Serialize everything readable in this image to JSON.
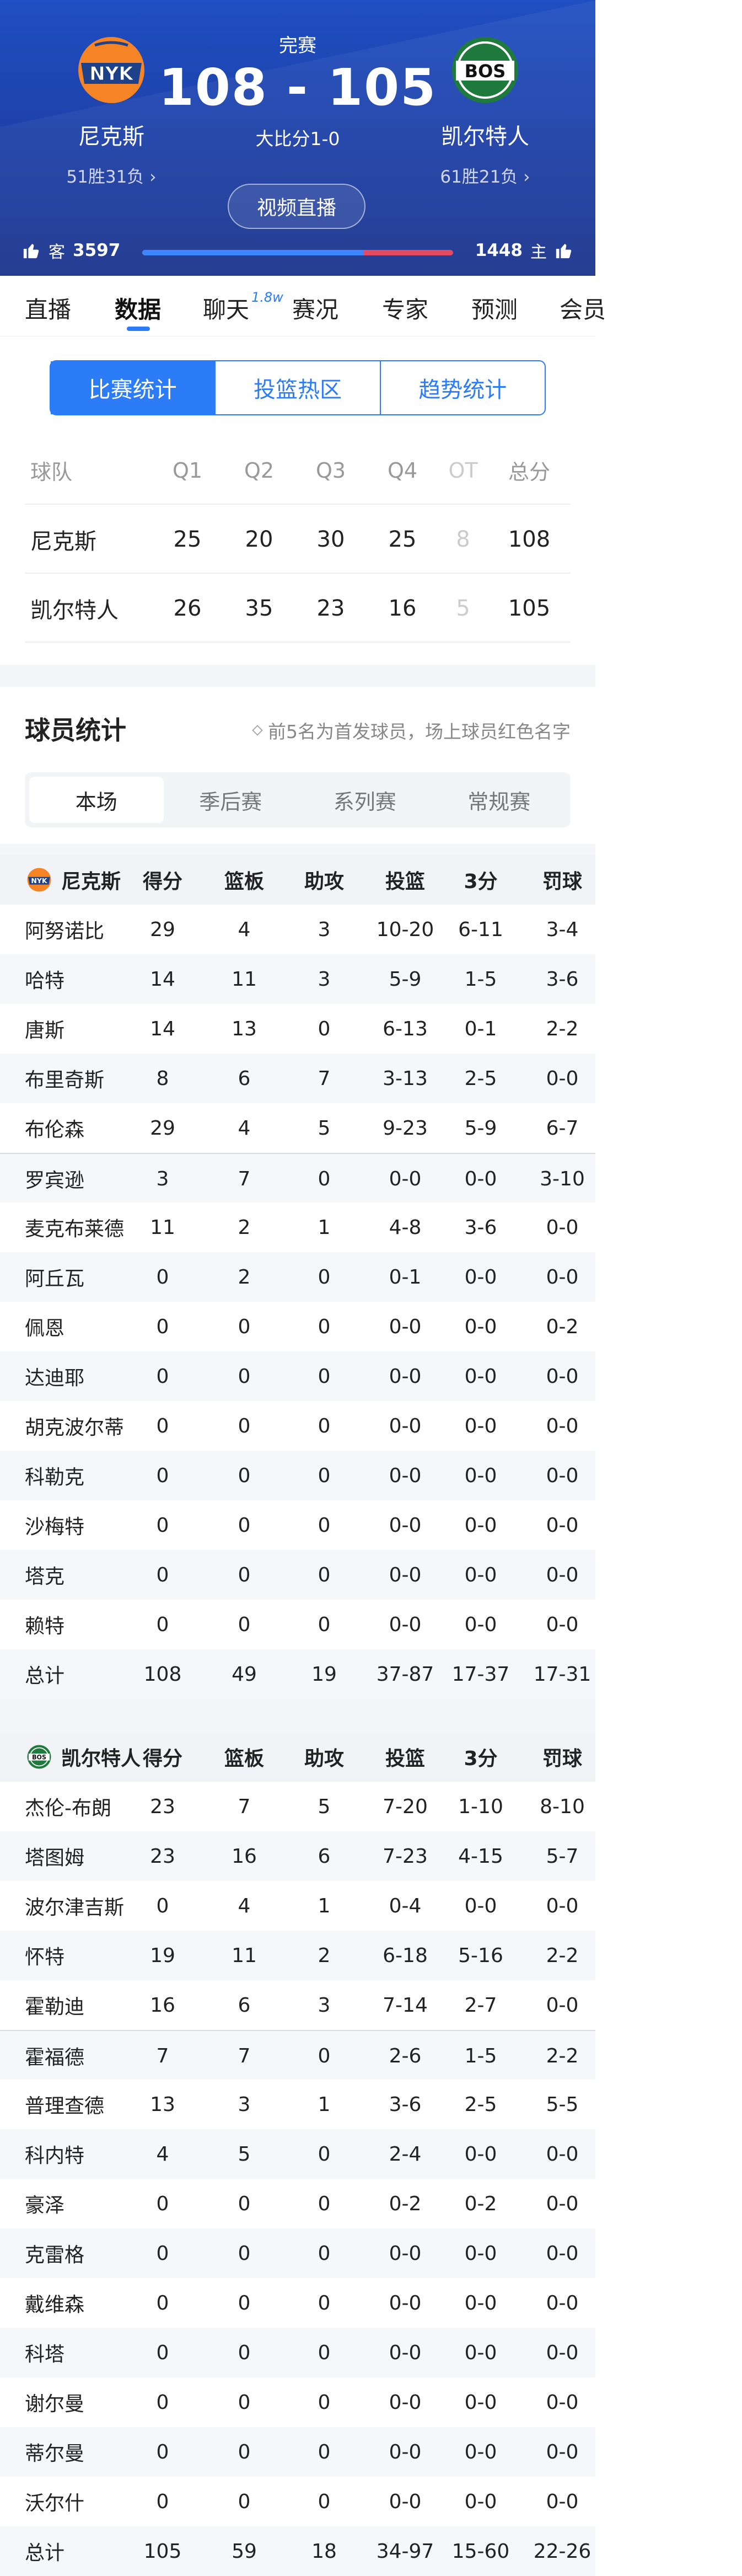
{
  "game": {
    "status": "完赛",
    "score": "108 - 105",
    "series": "大比分1-0",
    "live_button": "视频直播"
  },
  "away_team": {
    "name": "尼克斯",
    "record": "51胜31负",
    "abbr": "NYK",
    "color": "#f58426"
  },
  "home_team": {
    "name": "凯尔特人",
    "record": "61胜21负",
    "abbr": "BOS",
    "color": "#1f7a3e"
  },
  "votes": {
    "away_label": "客",
    "away_count": "3597",
    "home_label": "主",
    "home_count": "1448",
    "away_share": 0.713
  },
  "tabs": [
    {
      "label": "直播"
    },
    {
      "label": "数据"
    },
    {
      "label": "聊天",
      "badge": "1.8w"
    },
    {
      "label": "赛况"
    },
    {
      "label": "专家"
    },
    {
      "label": "预测"
    },
    {
      "label": "会员"
    }
  ],
  "segments": [
    "比赛统计",
    "投篮热区",
    "趋势统计"
  ],
  "quarters": {
    "headers": [
      "球队",
      "Q1",
      "Q2",
      "Q3",
      "Q4",
      "OT",
      "总分"
    ],
    "rows": [
      [
        "尼克斯",
        "25",
        "20",
        "30",
        "25",
        "8",
        "108"
      ],
      [
        "凯尔特人",
        "26",
        "35",
        "23",
        "16",
        "5",
        "105"
      ]
    ]
  },
  "player_stats": {
    "title": "球员统计",
    "note": "前5名为首发球员，场上球员红色名字",
    "subtabs": [
      "本场",
      "季后赛",
      "系列赛",
      "常规赛"
    ],
    "columns": [
      "得分",
      "篮板",
      "助攻",
      "投篮",
      "3分",
      "罚球"
    ]
  },
  "away_players": {
    "team": "尼克斯",
    "rows": [
      [
        "阿努诺比",
        "29",
        "4",
        "3",
        "10-20",
        "6-11",
        "3-4"
      ],
      [
        "哈特",
        "14",
        "11",
        "3",
        "5-9",
        "1-5",
        "3-6"
      ],
      [
        "唐斯",
        "14",
        "13",
        "0",
        "6-13",
        "0-1",
        "2-2"
      ],
      [
        "布里奇斯",
        "8",
        "6",
        "7",
        "3-13",
        "2-5",
        "0-0"
      ],
      [
        "布伦森",
        "29",
        "4",
        "5",
        "9-23",
        "5-9",
        "6-7"
      ],
      [
        "罗宾逊",
        "3",
        "7",
        "0",
        "0-0",
        "0-0",
        "3-10"
      ],
      [
        "麦克布莱德",
        "11",
        "2",
        "1",
        "4-8",
        "3-6",
        "0-0"
      ],
      [
        "阿丘瓦",
        "0",
        "2",
        "0",
        "0-1",
        "0-0",
        "0-0"
      ],
      [
        "佩恩",
        "0",
        "0",
        "0",
        "0-0",
        "0-0",
        "0-2"
      ],
      [
        "达迪耶",
        "0",
        "0",
        "0",
        "0-0",
        "0-0",
        "0-0"
      ],
      [
        "胡克波尔蒂",
        "0",
        "0",
        "0",
        "0-0",
        "0-0",
        "0-0"
      ],
      [
        "科勒克",
        "0",
        "0",
        "0",
        "0-0",
        "0-0",
        "0-0"
      ],
      [
        "沙梅特",
        "0",
        "0",
        "0",
        "0-0",
        "0-0",
        "0-0"
      ],
      [
        "塔克",
        "0",
        "0",
        "0",
        "0-0",
        "0-0",
        "0-0"
      ],
      [
        "赖特",
        "0",
        "0",
        "0",
        "0-0",
        "0-0",
        "0-0"
      ],
      [
        "总计",
        "108",
        "49",
        "19",
        "37-87",
        "17-37",
        "17-31"
      ]
    ]
  },
  "home_players": {
    "team": "凯尔特人",
    "rows": [
      [
        "杰伦-布朗",
        "23",
        "7",
        "5",
        "7-20",
        "1-10",
        "8-10"
      ],
      [
        "塔图姆",
        "23",
        "16",
        "6",
        "7-23",
        "4-15",
        "5-7"
      ],
      [
        "波尔津吉斯",
        "0",
        "4",
        "1",
        "0-4",
        "0-0",
        "0-0"
      ],
      [
        "怀特",
        "19",
        "11",
        "2",
        "6-18",
        "5-16",
        "2-2"
      ],
      [
        "霍勒迪",
        "16",
        "6",
        "3",
        "7-14",
        "2-7",
        "0-0"
      ],
      [
        "霍福德",
        "7",
        "7",
        "0",
        "2-6",
        "1-5",
        "2-2"
      ],
      [
        "普理查德",
        "13",
        "3",
        "1",
        "3-6",
        "2-5",
        "5-5"
      ],
      [
        "科内特",
        "4",
        "5",
        "0",
        "2-4",
        "0-0",
        "0-0"
      ],
      [
        "豪泽",
        "0",
        "0",
        "0",
        "0-2",
        "0-2",
        "0-0"
      ],
      [
        "克雷格",
        "0",
        "0",
        "0",
        "0-0",
        "0-0",
        "0-0"
      ],
      [
        "戴维森",
        "0",
        "0",
        "0",
        "0-0",
        "0-0",
        "0-0"
      ],
      [
        "科塔",
        "0",
        "0",
        "0",
        "0-0",
        "0-0",
        "0-0"
      ],
      [
        "谢尔曼",
        "0",
        "0",
        "0",
        "0-0",
        "0-0",
        "0-0"
      ],
      [
        "蒂尔曼",
        "0",
        "0",
        "0",
        "0-0",
        "0-0",
        "0-0"
      ],
      [
        "沃尔什",
        "0",
        "0",
        "0",
        "0-0",
        "0-0",
        "0-0"
      ],
      [
        "总计",
        "105",
        "59",
        "18",
        "34-97",
        "15-60",
        "22-26"
      ]
    ]
  }
}
